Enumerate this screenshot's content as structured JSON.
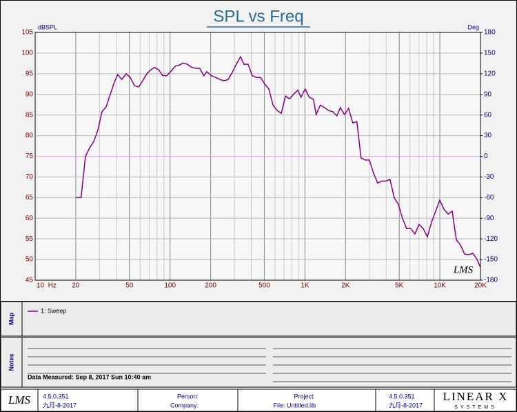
{
  "chart_data": {
    "type": "line",
    "title": "SPL vs Freq",
    "ylabel": "dBSPL",
    "y2label": "Deg",
    "xscale": "log",
    "grid": true,
    "xlim": [
      10,
      20000
    ],
    "xticks": [
      {
        "value": 10,
        "label": "10  Hz"
      },
      20,
      50,
      100,
      200,
      500,
      {
        "value": 1000,
        "label": "1K"
      },
      {
        "value": 2000,
        "label": "2K"
      },
      {
        "value": 5000,
        "label": "5K"
      },
      {
        "value": 10000,
        "label": "10K"
      },
      {
        "value": 20000,
        "label": "20K"
      }
    ],
    "ylim": [
      45,
      105
    ],
    "yticks": [
      105,
      100,
      95,
      90,
      85,
      80,
      75,
      70,
      65,
      60,
      55,
      50,
      45
    ],
    "y2lim": [
      -180,
      180
    ],
    "y2ticks": [
      180,
      150,
      120,
      90,
      60,
      30,
      0,
      -30,
      -60,
      -90,
      -120,
      -150,
      -180
    ],
    "reference_line": {
      "axis": "y2",
      "value": 0,
      "color": "#e8a8e8"
    },
    "x": [
      20,
      21.9,
      23.6,
      25.3,
      27.2,
      29.2,
      31.3,
      33.6,
      35.6,
      38.7,
      40.9,
      43.9,
      47.3,
      50.9,
      54.5,
      58.5,
      62.7,
      67.3,
      72.2,
      76.6,
      82,
      88,
      94.5,
      101,
      109,
      117,
      125,
      134,
      144,
      155,
      166,
      178,
      187,
      203,
      218,
      234,
      251,
      269,
      289,
      310,
      333,
      353,
      379,
      407,
      437,
      469,
      503,
      540,
      580,
      622,
      668,
      717,
      769,
      826,
      886,
      935,
      1003,
      1077,
      1156,
      1210,
      1299,
      1394,
      1496,
      1606,
      1723,
      1829,
      1962,
      2106,
      2261,
      2426,
      2604,
      2795,
      3000,
      3220,
      3456,
      3709,
      3981,
      4273,
      4586,
      4922,
      5283,
      5670,
      6086,
      6532,
      7011,
      7525,
      8076,
      8668,
      9304,
      9986,
      10718,
      11503,
      12347,
      13252,
      14223,
      15266,
      16385,
      17586,
      18875,
      20000
    ],
    "series": [
      {
        "name": "1: Sweep",
        "color": "#800080",
        "values": [
          65,
          65,
          75,
          77,
          78.6,
          81.4,
          85.8,
          87,
          89.5,
          93,
          94.8,
          93.6,
          95,
          94,
          92.1,
          91.8,
          93.3,
          95,
          96,
          96.5,
          96,
          94.6,
          94.5,
          95.5,
          96.8,
          97.1,
          97.6,
          97.3,
          96.6,
          96.3,
          96.3,
          94.5,
          95.5,
          94.5,
          94.1,
          93.6,
          93.3,
          93.6,
          95.3,
          97.3,
          99.1,
          97.3,
          97.3,
          94.5,
          94.1,
          94.1,
          92.5,
          91.3,
          87.4,
          86.1,
          85.4,
          89.6,
          88.9,
          90.1,
          91,
          89.3,
          91.3,
          89.3,
          88.8,
          85.1,
          87.4,
          86.8,
          86.1,
          85.8,
          84.8,
          86.8,
          85.1,
          86.6,
          83.1,
          83.4,
          74.6,
          74.1,
          74.1,
          71,
          68.5,
          69,
          69,
          69.4,
          65,
          63.4,
          60,
          57.5,
          57.5,
          56.2,
          58.5,
          57.5,
          55.5,
          59,
          61.7,
          64.4,
          62.2,
          61,
          61.7,
          54.8,
          53.5,
          51.3,
          51.2,
          51.5,
          50,
          48.1
        ]
      }
    ]
  },
  "watermark": "LMS",
  "map_label": "Map",
  "notes_label": "Notes",
  "data_measured": "Data Measured: Sep 8, 2017 Sun 10:40 am",
  "footer": {
    "logo": "LMS",
    "version_left": "4.5.0.351",
    "date_left": "九月-8-2017",
    "person": "Person:",
    "company": "Company:",
    "project": "Project:",
    "file": "File: Untitled.lib",
    "version_right": "4.5.0.351",
    "date_right": "九月-8-2017",
    "brand": "LINEAR X",
    "brand_sub": "SYSTEMS"
  }
}
